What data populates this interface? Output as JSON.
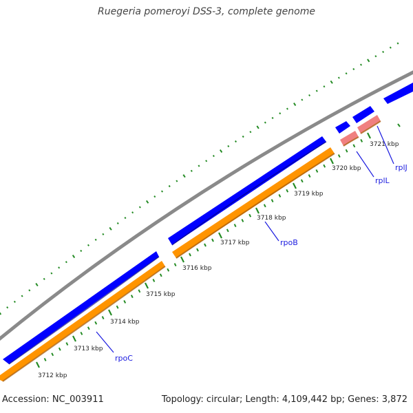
{
  "title": "Ruegeria pomeroyi DSS-3, complete genome",
  "footer": {
    "accession": "Accession: NC_003911",
    "summary": "Topology: circular; Length: 4,109,442 bp; Genes: 3,872"
  },
  "map": {
    "kbp_labels": [
      "3712 kbp",
      "3713 kbp",
      "3714 kbp",
      "3715 kbp",
      "3716 kbp",
      "3717 kbp",
      "3718 kbp",
      "3719 kbp",
      "3720 kbp",
      "3721 kbp"
    ],
    "genes": [
      "rpoC",
      "rpoB",
      "rplL",
      "rplJ"
    ],
    "colors": {
      "backbone": "#8a8a8a",
      "forward_feature": "#0000ff",
      "reverse_orange": "#ff9400",
      "reverse_pink": "#f08080",
      "scale": "#248b24",
      "gene_label": "#1a1adf"
    }
  }
}
